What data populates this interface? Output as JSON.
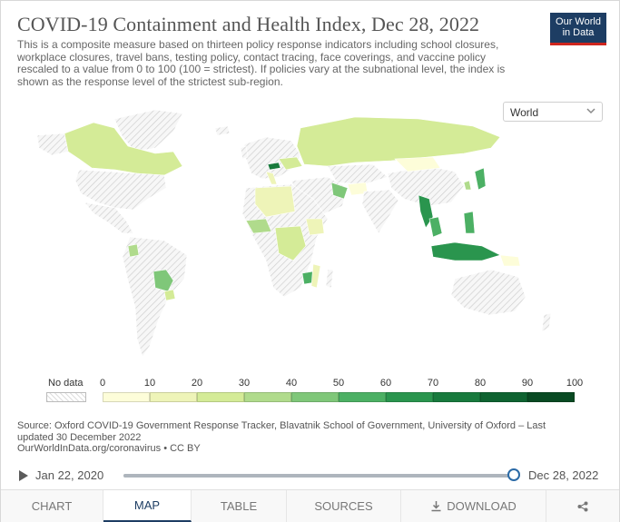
{
  "header": {
    "title": "COVID-19 Containment and Health Index, Dec 28, 2022",
    "subtitle": "This is a composite measure based on thirteen policy response indicators including school closures, workplace closures, travel bans, testing policy, contact tracing, face coverings, and vaccine policy rescaled to a value from 0 to 100 (100 = strictest). If policies vary at the subnational level, the index is shown as the response level of the strictest sub-region.",
    "logo_line1": "Our World",
    "logo_line2": "in Data"
  },
  "region_select": {
    "value": "World",
    "icon": "chevron-down-icon"
  },
  "legend": {
    "no_data_label": "No data",
    "ticks": [
      "0",
      "10",
      "20",
      "30",
      "40",
      "50",
      "60",
      "70",
      "80",
      "90",
      "100"
    ],
    "colors": [
      "#fdfdd9",
      "#eef4b8",
      "#d4eb97",
      "#b0db8c",
      "#7fc779",
      "#4cb064",
      "#2a954e",
      "#187a3d",
      "#0f6331",
      "#094a23"
    ],
    "no_data_pattern": "hatched-gray"
  },
  "map_colors": {
    "land_no_data": "#f2f2f2",
    "hatch": "#cccccc",
    "stroke": "#ffffff"
  },
  "source": {
    "line1": "Source: Oxford COVID-19 Government Response Tracker, Blavatnik School of Government, University of Oxford – Last updated 30 December 2022",
    "line2": "OurWorldInData.org/coronavirus • CC BY"
  },
  "timeline": {
    "start_label": "Jan 22, 2020",
    "end_label": "Dec 28, 2022",
    "position": 1.0,
    "play_icon": "play-icon"
  },
  "tabs": [
    {
      "label": "CHART",
      "active": false
    },
    {
      "label": "MAP",
      "active": true
    },
    {
      "label": "TABLE",
      "active": false
    },
    {
      "label": "SOURCES",
      "active": false
    },
    {
      "label": "DOWNLOAD",
      "active": false,
      "icon": "download-icon"
    },
    {
      "label": "",
      "active": false,
      "icon": "share-icon"
    }
  ]
}
